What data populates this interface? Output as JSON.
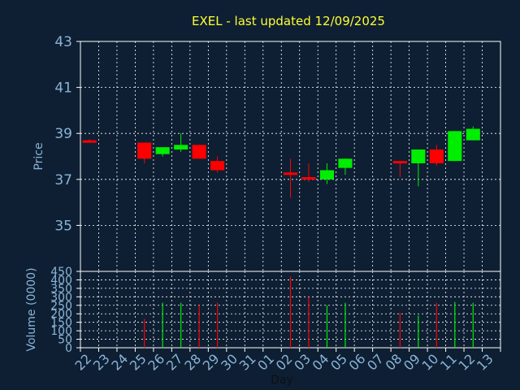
{
  "chart_data": {
    "type": "candlestick",
    "title": "EXEL - last updated 12/09/2025",
    "colors": {
      "background": "#0e1f33",
      "up": "#00ee00",
      "down": "#ff0000",
      "grid": "#ffffff",
      "text": "#8ab4d6",
      "title": "#ffff33"
    },
    "grid": true,
    "x": [
      "22",
      "23",
      "24",
      "25",
      "26",
      "27",
      "28",
      "29",
      "30",
      "31",
      "01",
      "02",
      "03",
      "04",
      "05",
      "06",
      "07",
      "08",
      "09",
      "10",
      "11",
      "12",
      "13"
    ],
    "xlabel": "Day",
    "price": {
      "ylabel": "Price",
      "ylim": [
        33,
        43
      ],
      "yticks": [
        35,
        37,
        39,
        41,
        43
      ],
      "candles": [
        {
          "x": "22",
          "open": 38.7,
          "high": 38.75,
          "low": 38.6,
          "close": 38.6
        },
        {
          "x": "25",
          "open": 38.6,
          "high": 38.6,
          "low": 37.7,
          "close": 37.9
        },
        {
          "x": "26",
          "open": 38.1,
          "high": 38.4,
          "low": 38.0,
          "close": 38.4
        },
        {
          "x": "27",
          "open": 38.3,
          "high": 39.0,
          "low": 38.2,
          "close": 38.5
        },
        {
          "x": "28",
          "open": 38.5,
          "high": 38.5,
          "low": 37.9,
          "close": 37.9
        },
        {
          "x": "29",
          "open": 37.8,
          "high": 38.0,
          "low": 37.3,
          "close": 37.4
        },
        {
          "x": "02",
          "open": 37.3,
          "high": 37.9,
          "low": 36.2,
          "close": 37.2
        },
        {
          "x": "03",
          "open": 37.1,
          "high": 37.7,
          "low": 36.9,
          "close": 37.0
        },
        {
          "x": "04",
          "open": 37.0,
          "high": 37.7,
          "low": 36.8,
          "close": 37.4
        },
        {
          "x": "05",
          "open": 37.5,
          "high": 37.9,
          "low": 37.2,
          "close": 37.9
        },
        {
          "x": "08",
          "open": 37.8,
          "high": 37.8,
          "low": 37.1,
          "close": 37.7
        },
        {
          "x": "09",
          "open": 37.7,
          "high": 38.3,
          "low": 36.7,
          "close": 38.3
        },
        {
          "x": "10",
          "open": 38.3,
          "high": 38.5,
          "low": 37.6,
          "close": 37.7
        },
        {
          "x": "11",
          "open": 37.8,
          "high": 39.1,
          "low": 37.8,
          "close": 39.1
        },
        {
          "x": "12",
          "open": 38.7,
          "high": 39.3,
          "low": 38.7,
          "close": 39.2
        }
      ]
    },
    "volume": {
      "ylabel": "Volume (0000)",
      "ylim": [
        0,
        450
      ],
      "yticks": [
        0,
        50,
        100,
        150,
        200,
        250,
        300,
        350,
        400,
        450
      ],
      "bars": [
        {
          "x": "22",
          "value": 0,
          "dir": "down"
        },
        {
          "x": "25",
          "value": 170,
          "dir": "down"
        },
        {
          "x": "26",
          "value": 265,
          "dir": "up"
        },
        {
          "x": "27",
          "value": 265,
          "dir": "up"
        },
        {
          "x": "28",
          "value": 250,
          "dir": "down"
        },
        {
          "x": "29",
          "value": 265,
          "dir": "down"
        },
        {
          "x": "02",
          "value": 420,
          "dir": "down"
        },
        {
          "x": "03",
          "value": 300,
          "dir": "down"
        },
        {
          "x": "04",
          "value": 250,
          "dir": "up"
        },
        {
          "x": "05",
          "value": 265,
          "dir": "up"
        },
        {
          "x": "08",
          "value": 205,
          "dir": "down"
        },
        {
          "x": "09",
          "value": 190,
          "dir": "up"
        },
        {
          "x": "10",
          "value": 265,
          "dir": "down"
        },
        {
          "x": "11",
          "value": 270,
          "dir": "up"
        },
        {
          "x": "12",
          "value": 265,
          "dir": "up"
        }
      ]
    }
  }
}
